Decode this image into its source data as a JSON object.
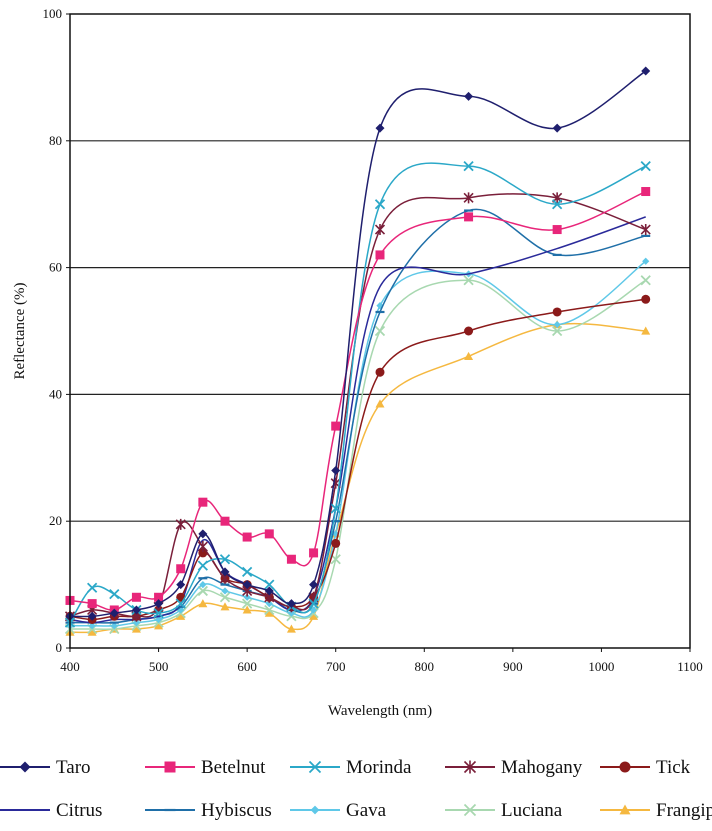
{
  "chart_data": {
    "type": "line",
    "title": "",
    "xlabel": "Wavelength (nm)",
    "ylabel": "Reflectance (%)",
    "xlim": [
      400,
      1100
    ],
    "ylim": [
      0,
      100
    ],
    "x_tick_labels": [
      "400",
      "500",
      "600",
      "700",
      "800",
      "900",
      "1000",
      "1100"
    ],
    "y_tick_labels": [
      "0",
      "20",
      "40",
      "60",
      "80",
      "100"
    ],
    "grid": "horizontal",
    "legend": "bottom",
    "x": [
      400,
      425,
      450,
      475,
      500,
      525,
      550,
      575,
      600,
      625,
      650,
      675,
      700,
      750,
      850,
      950,
      1050
    ],
    "series": [
      {
        "name": "Taro",
        "color": "#1f1f6e",
        "marker": "diamond",
        "values": [
          5,
          5,
          5.5,
          6,
          7,
          10,
          18,
          12,
          10,
          9,
          7,
          10,
          28,
          82,
          87,
          82,
          91
        ]
      },
      {
        "name": "Betelnut",
        "color": "#e8267a",
        "marker": "square",
        "values": [
          7.5,
          7,
          6,
          8,
          8,
          12.5,
          23,
          20,
          17.5,
          18,
          14,
          15,
          35,
          62,
          68,
          66,
          72
        ]
      },
      {
        "name": "Morinda",
        "color": "#2ba8c8",
        "marker": "x",
        "values": [
          4,
          9.5,
          8.5,
          6,
          5.5,
          7,
          13,
          14,
          12,
          10,
          6.5,
          7,
          22,
          70,
          76,
          70,
          76
        ]
      },
      {
        "name": "Mahogany",
        "color": "#7a1f3a",
        "marker": "star",
        "values": [
          5,
          6,
          5.5,
          5,
          6.5,
          19.5,
          16,
          11,
          9,
          8,
          6.5,
          8,
          26,
          66,
          71,
          71,
          66
        ]
      },
      {
        "name": "Tick",
        "color": "#8b1a1a",
        "marker": "circle",
        "values": [
          5,
          4.5,
          5,
          5,
          6,
          8,
          15,
          11,
          10,
          8,
          6.5,
          8,
          16.5,
          43.5,
          50,
          53,
          55
        ]
      },
      {
        "name": "Citrus",
        "color": "#2a2a9a",
        "marker": "none",
        "values": [
          4.5,
          4,
          4.5,
          4.5,
          5,
          7,
          17,
          12,
          10,
          8,
          6,
          8,
          22,
          57,
          59,
          63,
          68
        ]
      },
      {
        "name": "Hybiscus",
        "color": "#1f6fa8",
        "marker": "dash",
        "values": [
          4,
          4,
          4,
          4.5,
          5,
          6.5,
          11,
          10,
          9,
          8,
          6,
          7,
          20,
          53,
          69,
          62,
          65
        ]
      },
      {
        "name": "Gava",
        "color": "#5fc8e8",
        "marker": "diamond-small",
        "values": [
          3.5,
          3.5,
          3.5,
          4,
          4.5,
          6,
          10,
          9,
          8,
          7,
          5.5,
          6,
          18,
          54,
          59,
          51,
          61
        ]
      },
      {
        "name": "Luciana",
        "color": "#a8d8b0",
        "marker": "x",
        "values": [
          3,
          3,
          3,
          3.5,
          4,
          5.5,
          9,
          8,
          7,
          6,
          5,
          5.5,
          14,
          50,
          58,
          50,
          58
        ]
      },
      {
        "name": "Frangipani",
        "color": "#f5b840",
        "marker": "triangle",
        "values": [
          2.5,
          2.5,
          3,
          3,
          3.5,
          5,
          7,
          6.5,
          6,
          5.5,
          3,
          5,
          18,
          38.5,
          46,
          51,
          50
        ]
      }
    ]
  },
  "legend_rows": [
    [
      {
        "label": "Taro",
        "idx": 0
      },
      {
        "label": "Betelnut",
        "idx": 1
      },
      {
        "label": "Morinda",
        "idx": 2
      },
      {
        "label": "Mahogany",
        "idx": 3
      },
      {
        "label": "Tick",
        "idx": 4
      }
    ],
    [
      {
        "label": "Citrus",
        "idx": 5
      },
      {
        "label": "Hybiscus",
        "idx": 6
      },
      {
        "label": "Gava",
        "idx": 7
      },
      {
        "label": "Luciana",
        "idx": 8
      },
      {
        "label": "Frangipani",
        "idx": 9
      }
    ]
  ]
}
